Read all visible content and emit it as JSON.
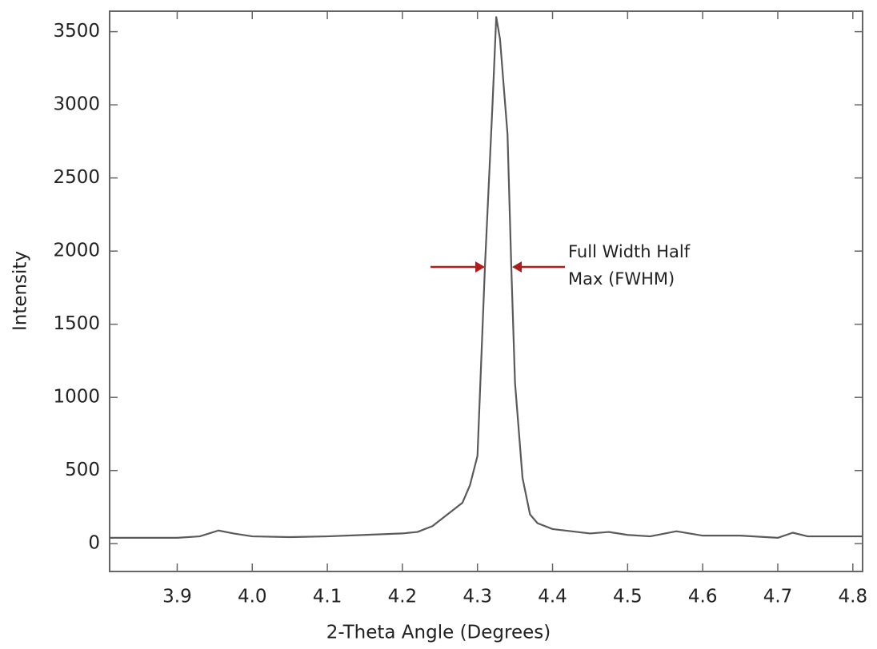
{
  "chart_data": {
    "type": "line",
    "x_label": "2-Theta Angle (Degrees)",
    "y_label": "Intensity",
    "annotations": [
      "Full Width Half",
      "Max (FWHM)"
    ],
    "x": [
      3.81,
      3.85,
      3.9,
      3.93,
      3.955,
      3.975,
      4.0,
      4.05,
      4.1,
      4.15,
      4.2,
      4.22,
      4.24,
      4.26,
      4.28,
      4.29,
      4.3,
      4.31,
      4.32,
      4.325,
      4.33,
      4.34,
      4.345,
      4.35,
      4.36,
      4.37,
      4.38,
      4.4,
      4.45,
      4.475,
      4.5,
      4.53,
      4.565,
      4.6,
      4.65,
      4.7,
      4.72,
      4.74,
      4.8,
      4.813
    ],
    "series": [
      {
        "color": "#5a5a5a",
        "values": [
          40,
          40,
          40,
          50,
          90,
          70,
          50,
          45,
          50,
          60,
          70,
          80,
          120,
          200,
          280,
          400,
          600,
          1900,
          3000,
          3600,
          3450,
          2800,
          1900,
          1100,
          450,
          200,
          140,
          100,
          70,
          80,
          60,
          50,
          85,
          55,
          55,
          40,
          75,
          50,
          50,
          50
        ]
      }
    ],
    "xlim": [
      3.81,
      4.813
    ],
    "ylim": [
      -190,
      3640
    ],
    "xticks": [
      3.9,
      {
        "value": 4,
        "label": "4.0"
      },
      4.1,
      4.2,
      4.3,
      4.4,
      4.5,
      4.6,
      4.7,
      4.8
    ],
    "yticks": [
      0,
      500,
      1000,
      1500,
      2000,
      2500,
      3000,
      3500
    ],
    "annotation_color": "#b01c1c"
  }
}
